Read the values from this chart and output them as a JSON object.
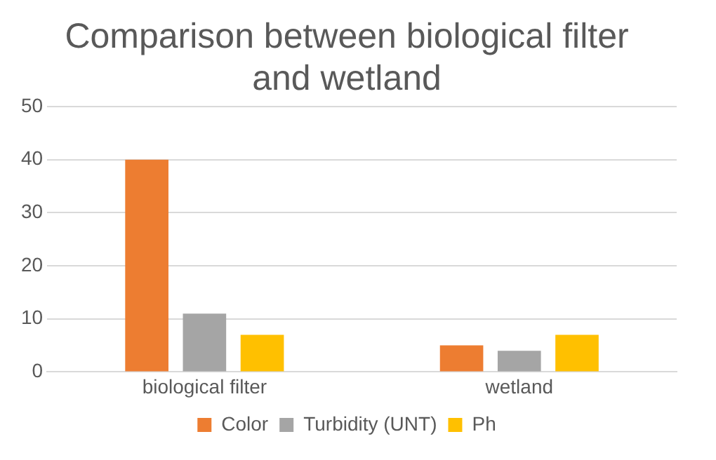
{
  "chart_data": {
    "type": "bar",
    "title": "Comparison between biological filter and wetland",
    "categories": [
      "biological filter",
      "wetland"
    ],
    "series": [
      {
        "name": "Color",
        "color": "#ed7d31",
        "values": [
          40,
          5
        ]
      },
      {
        "name": "Turbidity (UNT)",
        "color": "#a5a5a5",
        "values": [
          11,
          4
        ]
      },
      {
        "name": "Ph",
        "color": "#ffc000",
        "values": [
          7,
          7
        ]
      }
    ],
    "ylim": [
      0,
      50
    ],
    "yticks": [
      0,
      10,
      20,
      30,
      40,
      50
    ],
    "grid": "y",
    "legend": "bottom"
  }
}
